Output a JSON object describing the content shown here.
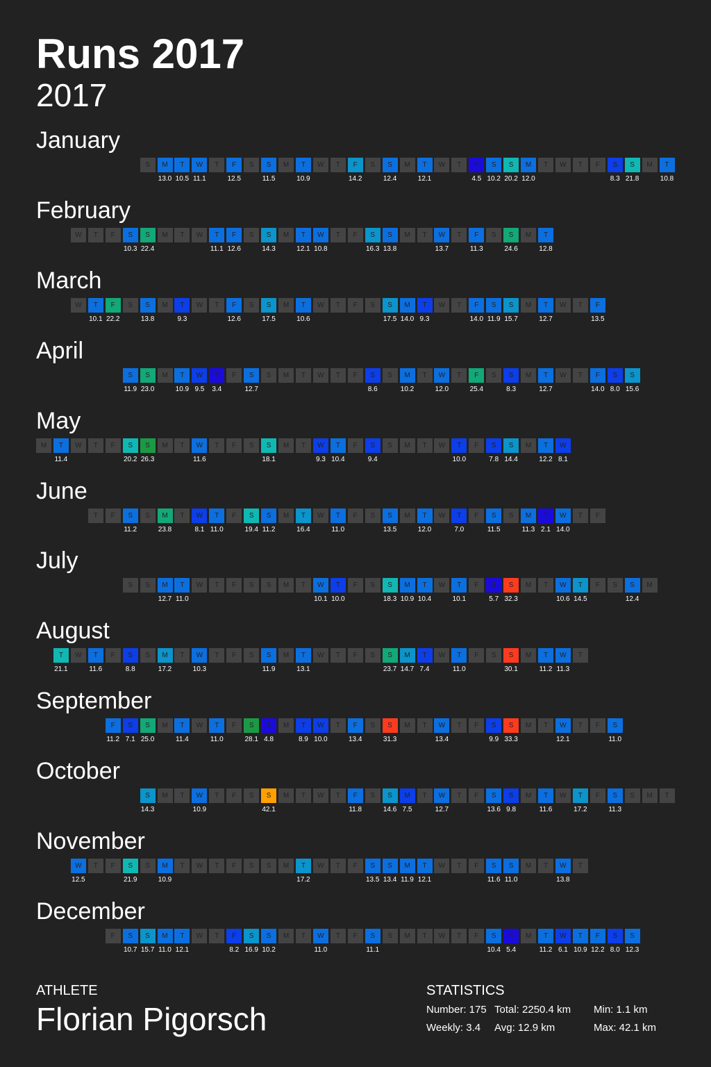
{
  "title": "Runs 2017",
  "subtitle": "2017",
  "colors": {
    "background": "#222222",
    "empty_cell": "#444444",
    "text": "#ffffff",
    "scale": [
      "#1a0bdc",
      "#0c3ee9",
      "#0c6fe0",
      "#0c94cc",
      "#10b8b4",
      "#12a878",
      "#1b9a45",
      "#ff3b1f",
      "#ff5a10",
      "#ffa000"
    ]
  },
  "color_scale": {
    "min_km": 2.0,
    "max_km": 42.1
  },
  "months": [
    {
      "name": "January",
      "first_weekday": 6,
      "runs": {
        "2": 13.0,
        "3": 10.5,
        "4": 11.1,
        "6": 12.5,
        "8": 11.5,
        "10": 10.9,
        "13": 14.2,
        "15": 12.4,
        "17": 12.1,
        "20": 4.5,
        "21": 10.2,
        "22": 20.2,
        "23": 12.0,
        "28": 8.3,
        "29": 21.8,
        "31": 10.8
      }
    },
    {
      "name": "February",
      "first_weekday": 2,
      "runs": {
        "4": 10.3,
        "5": 22.4,
        "9": 11.1,
        "10": 12.6,
        "12": 14.3,
        "14": 12.1,
        "15": 10.8,
        "18": 16.3,
        "19": 13.8,
        "22": 13.7,
        "24": 11.3,
        "26": 24.6,
        "28": 12.8
      }
    },
    {
      "name": "March",
      "first_weekday": 2,
      "runs": {
        "2": 10.1,
        "3": 22.2,
        "5": 13.8,
        "7": 9.3,
        "10": 12.6,
        "12": 17.5,
        "14": 10.6,
        "19": 17.5,
        "20": 14.0,
        "21": 9.3,
        "24": 14.0,
        "25": 11.9,
        "26": 15.7,
        "28": 12.7,
        "31": 13.5
      }
    },
    {
      "name": "April",
      "first_weekday": 5,
      "runs": {
        "1": 11.9,
        "2": 23.0,
        "4": 10.9,
        "5": 9.5,
        "6": 3.4,
        "8": 12.7,
        "15": 8.6,
        "17": 10.2,
        "19": 12.0,
        "21": 25.4,
        "23": 8.3,
        "25": 12.7,
        "28": 14.0,
        "29": 8.0,
        "30": 15.6
      }
    },
    {
      "name": "May",
      "first_weekday": 0,
      "runs": {
        "2": 11.4,
        "6": 20.2,
        "7": 26.3,
        "10": 11.6,
        "14": 18.1,
        "17": 9.3,
        "18": 10.4,
        "20": 9.4,
        "25": 10.0,
        "27": 7.8,
        "28": 14.4,
        "30": 12.2,
        "31": 8.1
      }
    },
    {
      "name": "June",
      "first_weekday": 3,
      "runs": {
        "3": 11.2,
        "5": 23.8,
        "7": 8.1,
        "8": 11.0,
        "10": 19.4,
        "11": 11.2,
        "13": 16.4,
        "15": 11.0,
        "18": 13.5,
        "20": 12.0,
        "22": 7.0,
        "24": 11.5,
        "26": 11.3,
        "27": 2.1,
        "28": 14.0
      }
    },
    {
      "name": "July",
      "first_weekday": 5,
      "runs": {
        "3": 12.7,
        "4": 11.0,
        "12": 10.1,
        "13": 10.0,
        "16": 18.3,
        "17": 10.9,
        "18": 10.4,
        "20": 10.1,
        "22": 5.7,
        "23": 32.3,
        "26": 10.6,
        "27": 14.5,
        "30": 12.4
      }
    },
    {
      "name": "August",
      "first_weekday": 1,
      "runs": {
        "1": 21.1,
        "3": 11.6,
        "5": 8.8,
        "7": 17.2,
        "9": 10.3,
        "13": 11.9,
        "15": 13.1,
        "20": 23.7,
        "21": 14.7,
        "22": 7.4,
        "24": 11.0,
        "27": 30.1,
        "29": 11.2,
        "30": 11.3
      }
    },
    {
      "name": "September",
      "first_weekday": 4,
      "runs": {
        "1": 11.2,
        "2": 7.1,
        "3": 25.0,
        "5": 11.4,
        "7": 11.0,
        "9": 28.1,
        "10": 4.8,
        "12": 8.9,
        "13": 10.0,
        "15": 13.4,
        "17": 31.3,
        "20": 13.4,
        "23": 9.9,
        "24": 33.3,
        "27": 12.1,
        "30": 11.0
      }
    },
    {
      "name": "October",
      "first_weekday": 6,
      "runs": {
        "1": 14.3,
        "4": 10.9,
        "8": 42.1,
        "13": 11.8,
        "15": 14.6,
        "16": 7.5,
        "18": 12.7,
        "21": 13.6,
        "22": 9.8,
        "24": 11.6,
        "26": 17.2,
        "28": 11.3
      }
    },
    {
      "name": "November",
      "first_weekday": 2,
      "runs": {
        "1": 12.5,
        "4": 21.9,
        "6": 10.9,
        "14": 17.2,
        "18": 13.5,
        "19": 13.4,
        "20": 11.9,
        "21": 12.1,
        "25": 11.6,
        "26": 11.0,
        "29": 13.8
      }
    },
    {
      "name": "December",
      "first_weekday": 4,
      "runs": {
        "2": 10.7,
        "3": 15.7,
        "4": 11.0,
        "5": 12.1,
        "8": 8.2,
        "9": 16.9,
        "10": 10.2,
        "13": 11.0,
        "16": 11.1,
        "23": 10.4,
        "24": 5.4,
        "26": 11.2,
        "27": 6.1,
        "28": 10.9,
        "29": 12.2,
        "30": 8.0,
        "31": 12.3
      }
    }
  ],
  "weekday_letters": [
    "M",
    "T",
    "W",
    "T",
    "F",
    "S",
    "S"
  ],
  "athlete": {
    "label": "ATHLETE",
    "name": "Florian Pigorsch"
  },
  "statistics": {
    "label": "STATISTICS",
    "number": "Number: 175",
    "total": "Total: 2250.4 km",
    "min": "Min: 1.1 km",
    "weekly": "Weekly: 3.4",
    "avg": "Avg: 12.9 km",
    "max": "Max: 42.1 km"
  }
}
